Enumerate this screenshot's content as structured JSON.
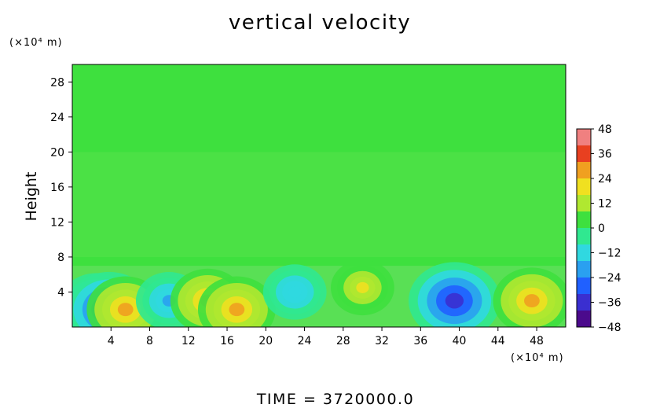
{
  "chart_data": {
    "type": "heatmap",
    "title": "vertical velocity",
    "ylabel": "Height",
    "xunit": "(×10⁴ m)",
    "yunit": "(×10⁴ m)",
    "footer": "TIME  =  3720000.0",
    "xlim": [
      0,
      51
    ],
    "ylim": [
      0,
      30
    ],
    "xticks": [
      4,
      8,
      12,
      16,
      20,
      24,
      28,
      32,
      36,
      40,
      44,
      48
    ],
    "yticks": [
      4,
      8,
      12,
      16,
      20,
      24,
      28
    ],
    "colorbar": {
      "min": -48,
      "max": 48,
      "ticks": [
        48,
        36,
        24,
        12,
        0,
        -12,
        -24,
        -36,
        -48
      ],
      "colors": [
        "#4b0a8c",
        "#3a2fd0",
        "#2060ff",
        "#2aa0f0",
        "#30d8e0",
        "#30e890",
        "#3ee03e",
        "#b0e830",
        "#f0e020",
        "#f0a020",
        "#e84020",
        "#f08080"
      ]
    },
    "features": [
      {
        "x": 2.5,
        "y": 2.5,
        "value": -24
      },
      {
        "x": 3.8,
        "y": 2.0,
        "value": -34
      },
      {
        "x": 5.5,
        "y": 2.0,
        "value": 26
      },
      {
        "x": 10,
        "y": 3,
        "value": -18
      },
      {
        "x": 14,
        "y": 3,
        "value": 24
      },
      {
        "x": 17,
        "y": 2,
        "value": 26
      },
      {
        "x": 23,
        "y": 4,
        "value": -16
      },
      {
        "x": 30,
        "y": 4.5,
        "value": 16
      },
      {
        "x": 39.5,
        "y": 3,
        "value": -36
      },
      {
        "x": 47.5,
        "y": 3,
        "value": 26
      }
    ]
  }
}
